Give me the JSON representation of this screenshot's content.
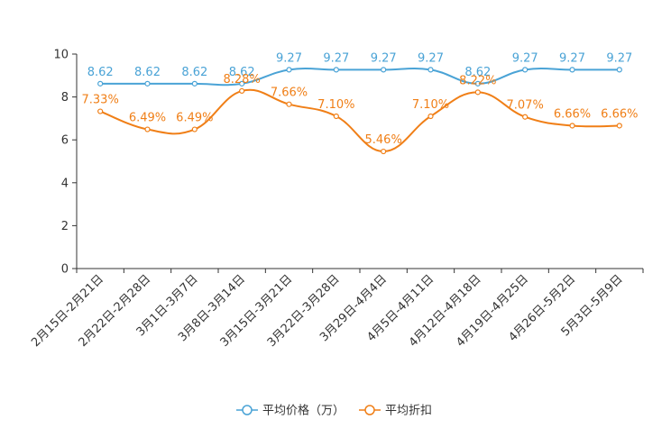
{
  "chart_data": {
    "type": "line",
    "title": "",
    "xlabel": "",
    "ylabel": "",
    "ylim": [
      0,
      10
    ],
    "yticks": [
      0,
      2,
      4,
      6,
      8,
      10
    ],
    "grid": false,
    "legend_position": "bottom-center",
    "categories": [
      "2月15日-2月21日",
      "2月22日-2月28日",
      "3月1日-3月7日",
      "3月8日-3月14日",
      "3月15日-3月21日",
      "3月22日-3月28日",
      "3月29日-4月4日",
      "4月5日-4月11日",
      "4月12日-4月18日",
      "4月19日-4月25日",
      "4月26日-5月2日",
      "5月3日-5月9日"
    ],
    "series": [
      {
        "name": "平均价格（万）",
        "color": "#4aa3d6",
        "values": [
          8.62,
          8.62,
          8.62,
          8.62,
          9.27,
          9.27,
          9.27,
          9.27,
          8.62,
          9.27,
          9.27,
          9.27
        ],
        "labels": [
          "8.62",
          "8.62",
          "8.62",
          "8.62",
          "9.27",
          "9.27",
          "9.27",
          "9.27",
          "8.62",
          "9.27",
          "9.27",
          "9.27"
        ]
      },
      {
        "name": "平均折扣",
        "color": "#f07f17",
        "values": [
          7.33,
          6.49,
          6.49,
          8.28,
          7.66,
          7.1,
          5.46,
          7.1,
          8.22,
          7.07,
          6.66,
          6.66
        ],
        "labels": [
          "7.33%",
          "6.49%",
          "6.49%",
          "8.28%",
          "7.66%",
          "7.10%",
          "5.46%",
          "7.10%",
          "8.22%",
          "7.07%",
          "6.66%",
          "6.66%"
        ]
      }
    ]
  }
}
